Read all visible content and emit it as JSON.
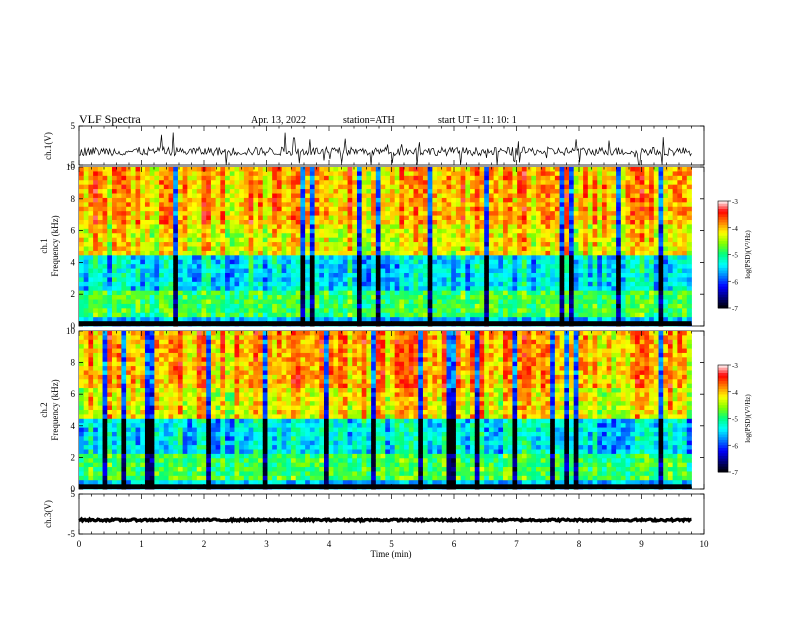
{
  "header": {
    "title": "VLF  Spectra",
    "date": "Apr. 13, 2022",
    "station": "station=ATH",
    "start": "start  UT  =    11: 10: 1"
  },
  "chart_data": [
    {
      "type": "line",
      "panel": "ch1-waveform",
      "ylabel": "ch.1(V)",
      "ylim": [
        -5,
        5
      ],
      "yticks": [
        5,
        -5
      ],
      "data_xrange": [
        0,
        9.8
      ],
      "baseline": -1.5,
      "color": "#000000"
    },
    {
      "type": "heatmap",
      "panel": "ch1-spectrogram",
      "ylabel": "ch.1\nFrequency  (kHz)",
      "ylim": [
        0,
        10
      ],
      "yticks": [
        0,
        2,
        4,
        6,
        8,
        10
      ],
      "data_xrange": [
        0,
        9.8
      ],
      "colorbar": {
        "label": "log(PSD)(V²/Hz)",
        "range": [
          -7,
          -3
        ],
        "ticks": [
          -3,
          -4,
          -5,
          -6,
          -7
        ]
      }
    },
    {
      "type": "heatmap",
      "panel": "ch2-spectrogram",
      "ylabel": "ch.2\nFrequency  (kHz)",
      "ylim": [
        0,
        10
      ],
      "yticks": [
        0,
        2,
        4,
        6,
        8,
        10
      ],
      "data_xrange": [
        0,
        9.8
      ],
      "colorbar": {
        "label": "log(PSD)(V²/Hz)",
        "range": [
          -7,
          -3
        ],
        "ticks": [
          -3,
          -4,
          -5,
          -6,
          -7
        ]
      }
    },
    {
      "type": "line",
      "panel": "ch3-waveform",
      "ylabel": "ch.3(V)",
      "ylim": [
        -5,
        5
      ],
      "yticks": [
        5,
        -5
      ],
      "data_xrange": [
        0,
        9.8
      ],
      "baseline": -1.5,
      "color": "#000000"
    }
  ],
  "x_axis": {
    "label": "Time  (min)",
    "range": [
      0,
      10
    ],
    "ticks": [
      "0",
      "1",
      "2",
      "3",
      "4",
      "5",
      "6",
      "7",
      "8",
      "9",
      "10"
    ]
  },
  "colormap": [
    "#000000",
    "#00007f",
    "#0000ff",
    "#0080ff",
    "#00ffff",
    "#00ff80",
    "#80ff00",
    "#ffff00",
    "#ff8000",
    "#ff0000",
    "#ffffff"
  ]
}
